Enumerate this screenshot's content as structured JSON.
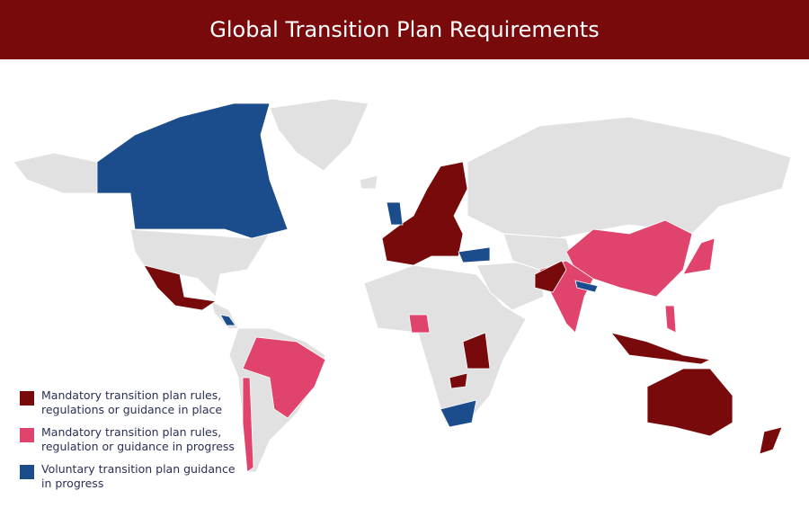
{
  "header": {
    "title": "Global Transition Plan Requirements"
  },
  "legend": {
    "items": [
      {
        "lines": [
          "Mandatory transition plan rules,",
          "regulations or guidance in place"
        ],
        "color": "#780a0b"
      },
      {
        "lines": [
          "Mandatory transition plan rules,",
          "regulation or guidance in progress"
        ],
        "color": "#e0446c"
      },
      {
        "lines": [
          "Voluntary transition plan guidance",
          "in progress"
        ],
        "color": "#1b4d8c"
      }
    ]
  }
}
